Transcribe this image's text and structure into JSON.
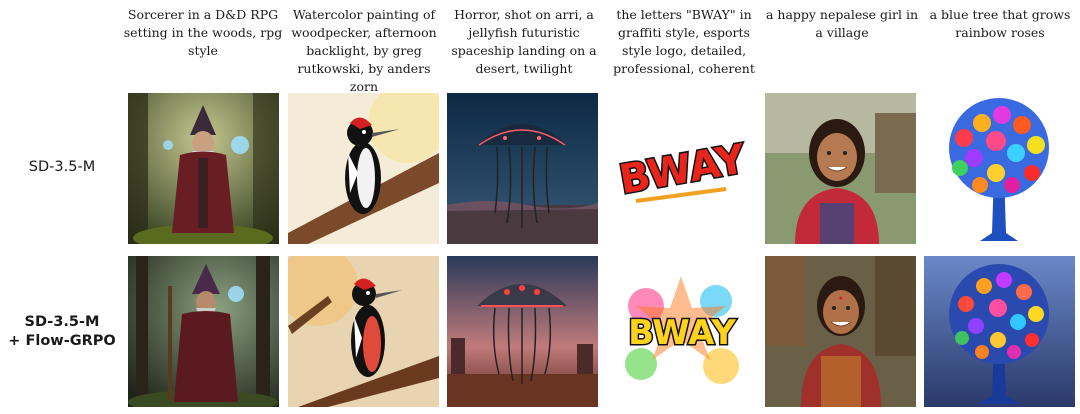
{
  "prompts": [
    "Sorcerer in a D&D RPG setting in the woods, rpg style",
    "Watercolor painting of woodpecker, afternoon backlight, by greg rutkowski, by anders zorn",
    "Horror, shot on arri, a jellyfish futuristic spaceship landing on a desert, twilight",
    "the letters \"BWAY\" in graffiti style, esports style logo, detailed, professional, coherent",
    "a happy nepalese girl in a village",
    "a blue tree that grows rainbow roses"
  ],
  "rows": [
    {
      "label_line1": "SD-3.5-M",
      "label_line2": ""
    },
    {
      "label_line1": "SD-3.5-M",
      "label_line2": "+ Flow-GRPO"
    }
  ],
  "logo_text": "BWAY"
}
